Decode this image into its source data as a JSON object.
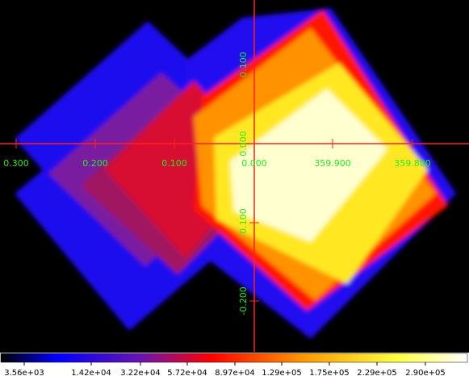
{
  "axes": {
    "x_labels": [
      "0.300",
      "0.200",
      "0.100",
      "0.000",
      "359.900",
      "359.800"
    ],
    "y_labels": [
      "0.100",
      "0.000",
      "-0.100",
      "-0.200"
    ]
  },
  "colorbar": {
    "labels": [
      "3.56e+03",
      "1.42e+04",
      "3.22e+04",
      "5.72e+04",
      "8.97e+04",
      "1.29e+05",
      "1.75e+05",
      "2.29e+05",
      "2.90e+05"
    ]
  }
}
